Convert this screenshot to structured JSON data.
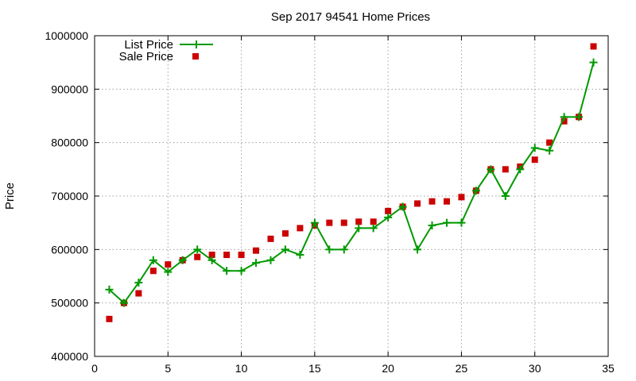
{
  "chart_data": {
    "type": "line",
    "title": "Sep 2017 94541 Home Prices",
    "xlabel": "",
    "ylabel": "Price",
    "xlim": [
      0,
      35
    ],
    "ylim": [
      400000,
      1000000
    ],
    "x_ticks": [
      0,
      5,
      10,
      15,
      20,
      25,
      30,
      35
    ],
    "y_ticks": [
      400000,
      500000,
      600000,
      700000,
      800000,
      900000,
      1000000
    ],
    "grid": true,
    "legend_position": "top-left",
    "series": [
      {
        "name": "List Price",
        "style": "line-plus",
        "color": "#009900",
        "x": [
          1,
          2,
          3,
          4,
          5,
          6,
          7,
          8,
          9,
          10,
          11,
          12,
          13,
          14,
          15,
          16,
          17,
          18,
          19,
          20,
          21,
          22,
          23,
          24,
          25,
          26,
          27,
          28,
          29,
          30,
          31,
          32,
          33,
          34
        ],
        "values": [
          525000,
          500000,
          538000,
          580000,
          558000,
          580000,
          600000,
          580000,
          560000,
          560000,
          575000,
          580000,
          600000,
          590000,
          650000,
          600000,
          600000,
          640000,
          640000,
          660000,
          680000,
          600000,
          645000,
          650000,
          650000,
          710000,
          750000,
          700000,
          750000,
          790000,
          785000,
          848000,
          848000,
          950000
        ]
      },
      {
        "name": "Sale Price",
        "style": "square",
        "color": "#cc0000",
        "x": [
          1,
          2,
          3,
          4,
          5,
          6,
          7,
          8,
          9,
          10,
          11,
          12,
          13,
          14,
          15,
          16,
          17,
          18,
          19,
          20,
          21,
          22,
          23,
          24,
          25,
          26,
          27,
          28,
          29,
          30,
          31,
          32,
          33,
          34
        ],
        "values": [
          470000,
          500000,
          518000,
          560000,
          572000,
          580000,
          586000,
          590000,
          590000,
          590000,
          598000,
          620000,
          630000,
          640000,
          645000,
          650000,
          650000,
          652000,
          652000,
          672000,
          680000,
          686000,
          690000,
          690000,
          698000,
          710000,
          750000,
          750000,
          755000,
          768000,
          800000,
          840000,
          848000,
          980000
        ]
      }
    ]
  }
}
